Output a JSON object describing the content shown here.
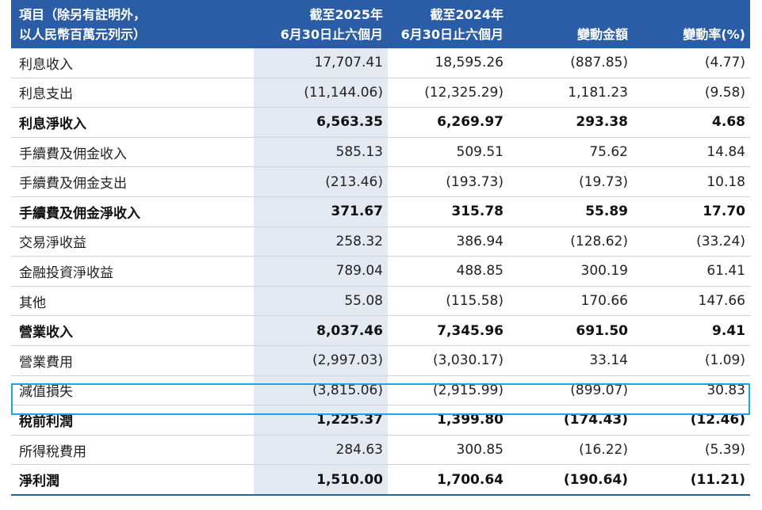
{
  "header": {
    "item_col": "項目（除另有註明外，\n以人民幣百萬元列示）",
    "col_2025": "截至2025年\n6月30日止六個月",
    "col_2024": "截至2024年\n6月30日止六個月",
    "col_change": "變動金額",
    "col_rate": "變動率(%)"
  },
  "rows": [
    {
      "label": "利息收入",
      "v2025": "17,707.41",
      "v2024": "18,595.26",
      "change": "(887.85)",
      "rate": "(4.77)",
      "bold": false
    },
    {
      "label": "利息支出",
      "v2025": "(11,144.06)",
      "v2024": "(12,325.29)",
      "change": "1,181.23",
      "rate": "(9.58)",
      "bold": false
    },
    {
      "label": "利息淨收入",
      "v2025": "6,563.35",
      "v2024": "6,269.97",
      "change": "293.38",
      "rate": "4.68",
      "bold": true
    },
    {
      "label": "手續費及佣金收入",
      "v2025": "585.13",
      "v2024": "509.51",
      "change": "75.62",
      "rate": "14.84",
      "bold": false
    },
    {
      "label": "手續費及佣金支出",
      "v2025": "(213.46)",
      "v2024": "(193.73)",
      "change": "(19.73)",
      "rate": "10.18",
      "bold": false
    },
    {
      "label": "手續費及佣金淨收入",
      "v2025": "371.67",
      "v2024": "315.78",
      "change": "55.89",
      "rate": "17.70",
      "bold": true
    },
    {
      "label": "交易淨收益",
      "v2025": "258.32",
      "v2024": "386.94",
      "change": "(128.62)",
      "rate": "(33.24)",
      "bold": false
    },
    {
      "label": "金融投資淨收益",
      "v2025": "789.04",
      "v2024": "488.85",
      "change": "300.19",
      "rate": "61.41",
      "bold": false
    },
    {
      "label": "其他",
      "v2025": "55.08",
      "v2024": "(115.58)",
      "change": "170.66",
      "rate": "147.66",
      "bold": false
    },
    {
      "label": "營業收入",
      "v2025": "8,037.46",
      "v2024": "7,345.96",
      "change": "691.50",
      "rate": "9.41",
      "bold": true
    },
    {
      "label": "營業費用",
      "v2025": "(2,997.03)",
      "v2024": "(3,030.17)",
      "change": "33.14",
      "rate": "(1.09)",
      "bold": false
    },
    {
      "label": "減值損失",
      "v2025": "(3,815.06)",
      "v2024": "(2,915.99)",
      "change": "(899.07)",
      "rate": "30.83",
      "bold": false
    },
    {
      "label": "稅前利潤",
      "v2025": "1,225.37",
      "v2024": "1,399.80",
      "change": "(174.43)",
      "rate": "(12.46)",
      "bold": true
    },
    {
      "label": "所得稅費用",
      "v2025": "284.63",
      "v2024": "300.85",
      "change": "(16.22)",
      "rate": "(5.39)",
      "bold": false
    },
    {
      "label": "淨利潤",
      "v2025": "1,510.00",
      "v2024": "1,700.64",
      "change": "(190.64)",
      "rate": "(11.21)",
      "bold": true
    }
  ],
  "colors": {
    "header_bg": "#2b5ca6",
    "highlight_col": "#e4e8f1",
    "selection_box": "#1aa6e0"
  }
}
